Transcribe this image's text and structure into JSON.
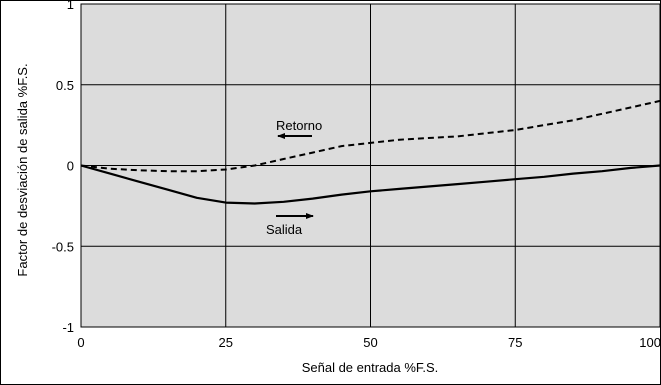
{
  "chart_data": {
    "type": "line",
    "xlabel": "Señal de entrada  %F.S.",
    "ylabel": "Factor de desviación de salida  %F.S.",
    "xlim": [
      0,
      100
    ],
    "ylim": [
      -1,
      1
    ],
    "x_ticks": [
      "0",
      "25",
      "50",
      "75",
      "100"
    ],
    "y_ticks": [
      "1",
      "0.5",
      "0",
      "-0.5",
      "-1"
    ],
    "grid": true,
    "background_color": "#dcdcdc",
    "series": [
      {
        "name": "Retorno",
        "style": "dashed",
        "direction": "arrow-left",
        "x": [
          0,
          5,
          10,
          15,
          20,
          25,
          30,
          35,
          40,
          45,
          50,
          55,
          60,
          65,
          70,
          75,
          80,
          85,
          90,
          95,
          100
        ],
        "y": [
          0,
          -0.02,
          -0.03,
          -0.035,
          -0.035,
          -0.025,
          0.0,
          0.04,
          0.08,
          0.12,
          0.14,
          0.16,
          0.17,
          0.18,
          0.2,
          0.22,
          0.25,
          0.28,
          0.32,
          0.36,
          0.4
        ]
      },
      {
        "name": "Salida",
        "style": "solid",
        "direction": "arrow-right",
        "x": [
          0,
          5,
          10,
          15,
          20,
          25,
          30,
          35,
          40,
          45,
          50,
          55,
          60,
          65,
          70,
          75,
          80,
          85,
          90,
          95,
          100
        ],
        "y": [
          0,
          -0.05,
          -0.1,
          -0.15,
          -0.2,
          -0.23,
          -0.235,
          -0.225,
          -0.205,
          -0.18,
          -0.16,
          -0.145,
          -0.13,
          -0.115,
          -0.1,
          -0.085,
          -0.07,
          -0.05,
          -0.035,
          -0.015,
          0
        ]
      }
    ]
  }
}
